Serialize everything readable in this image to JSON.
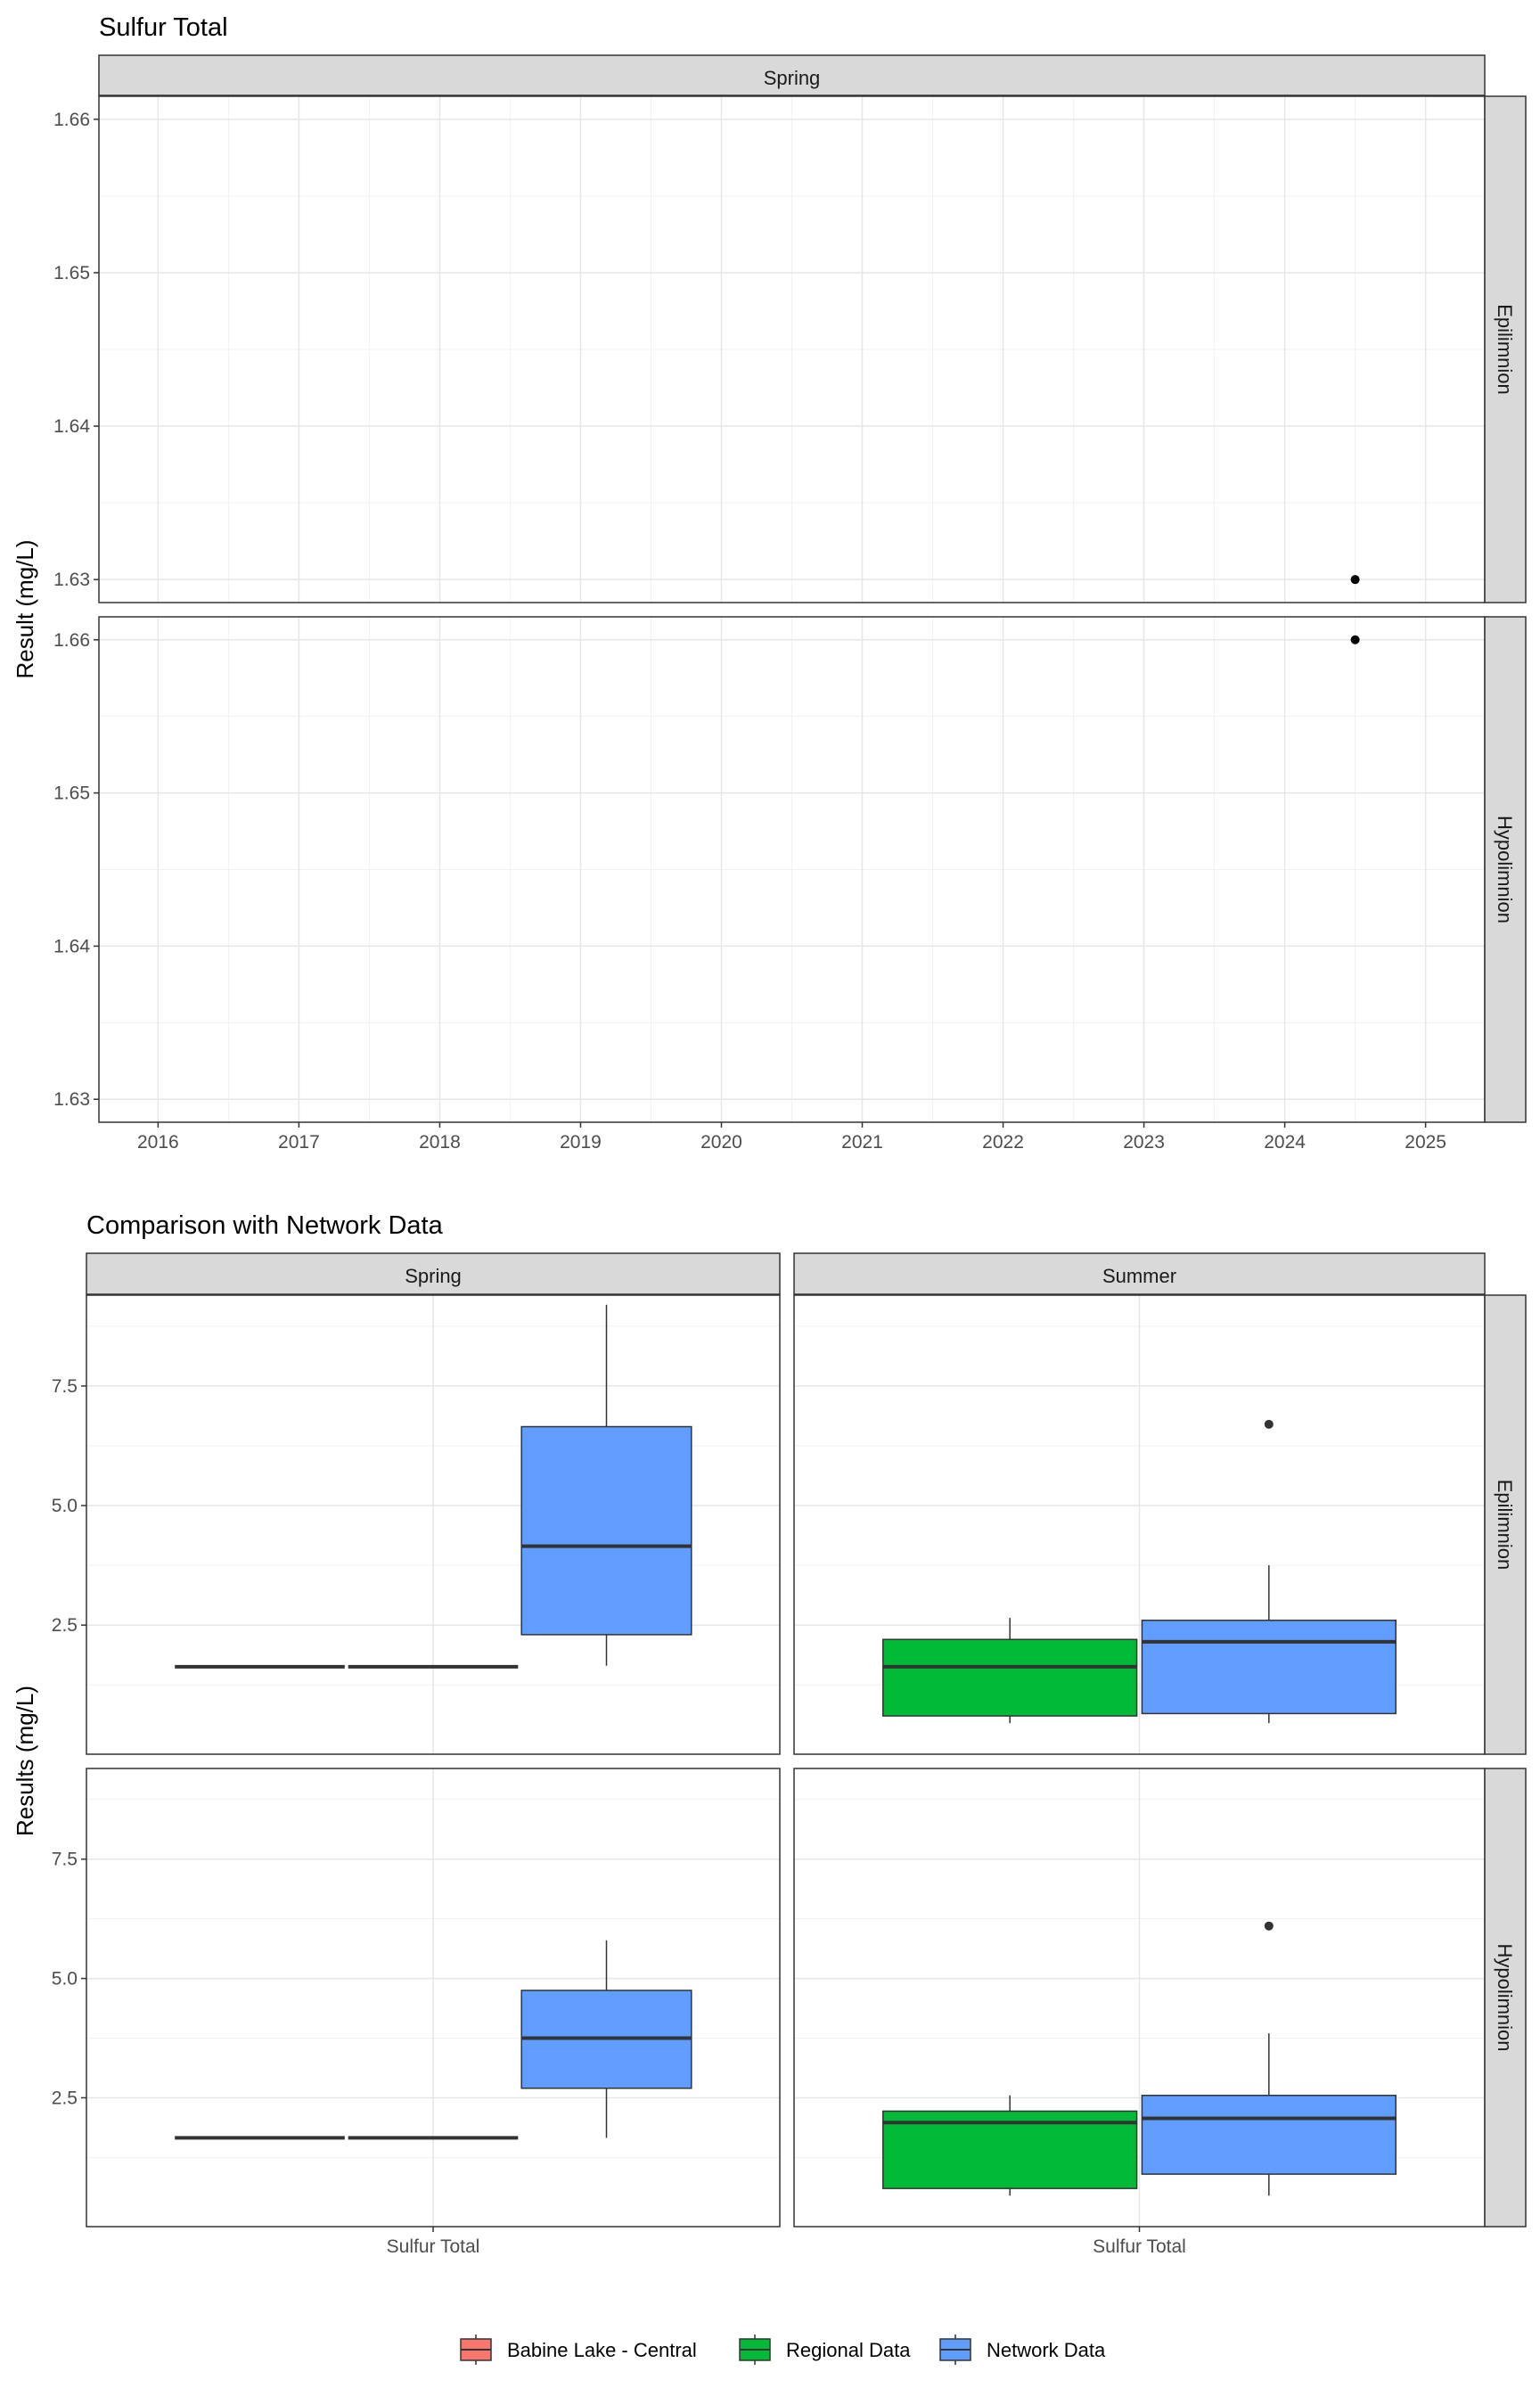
{
  "chart_data": [
    {
      "type": "scatter",
      "title": "Sulfur Total",
      "ylabel": "Result (mg/L)",
      "xlabel": "",
      "x_ticks": [
        "2016",
        "2017",
        "2018",
        "2019",
        "2020",
        "2021",
        "2022",
        "2023",
        "2024",
        "2025"
      ],
      "y_ticks": [
        "1.63",
        "1.64",
        "1.65",
        "1.66"
      ],
      "xlim": [
        2015.58,
        2025.42
      ],
      "ylim": [
        1.6285,
        1.6615
      ],
      "grid": true,
      "column_facets": [
        "Spring"
      ],
      "row_facets": [
        "Epilimnion",
        "Hypolimnion"
      ],
      "panels": [
        {
          "column": "Spring",
          "row": "Epilimnion",
          "points": [
            {
              "x": 2024.5,
              "y": 1.63
            }
          ]
        },
        {
          "column": "Spring",
          "row": "Hypolimnion",
          "points": [
            {
              "x": 2024.5,
              "y": 1.66
            }
          ]
        }
      ]
    },
    {
      "type": "box",
      "title": "Comparison with Network Data",
      "ylabel": "Results (mg/L)",
      "xlabel": "",
      "x_category": "Sulfur Total",
      "y_ticks": [
        "2.5",
        "5.0",
        "7.5"
      ],
      "ylim": [
        -0.2,
        9.4
      ],
      "grid": true,
      "column_facets": [
        "Spring",
        "Summer"
      ],
      "row_facets": [
        "Epilimnion",
        "Hypolimnion"
      ],
      "legend": {
        "position": "bottom",
        "entries": [
          {
            "name": "Babine Lake - Central",
            "color": "#F8766D"
          },
          {
            "name": "Regional Data",
            "color": "#00BA38"
          },
          {
            "name": "Network Data",
            "color": "#619CFF"
          }
        ]
      },
      "panels": [
        {
          "column": "Spring",
          "row": "Epilimnion",
          "boxes": [
            {
              "group": "Babine Lake - Central",
              "min": 1.63,
              "q1": 1.63,
              "median": 1.63,
              "q3": 1.63,
              "max": 1.63,
              "outliers": []
            },
            {
              "group": "Regional Data",
              "min": 1.63,
              "q1": 1.63,
              "median": 1.63,
              "q3": 1.63,
              "max": 1.63,
              "outliers": []
            },
            {
              "group": "Network Data",
              "min": 1.65,
              "q1": 2.3,
              "median": 4.15,
              "q3": 6.65,
              "max": 9.2,
              "outliers": []
            }
          ]
        },
        {
          "column": "Summer",
          "row": "Epilimnion",
          "boxes": [
            {
              "group": "Regional Data",
              "min": 0.45,
              "q1": 0.6,
              "median": 1.63,
              "q3": 2.2,
              "max": 2.65,
              "outliers": []
            },
            {
              "group": "Network Data",
              "min": 0.45,
              "q1": 0.65,
              "median": 2.15,
              "q3": 2.6,
              "max": 3.75,
              "outliers": [
                6.7
              ]
            }
          ]
        },
        {
          "column": "Spring",
          "row": "Hypolimnion",
          "boxes": [
            {
              "group": "Babine Lake - Central",
              "min": 1.66,
              "q1": 1.66,
              "median": 1.66,
              "q3": 1.66,
              "max": 1.66,
              "outliers": []
            },
            {
              "group": "Regional Data",
              "min": 1.66,
              "q1": 1.66,
              "median": 1.66,
              "q3": 1.66,
              "max": 1.66,
              "outliers": []
            },
            {
              "group": "Network Data",
              "min": 1.66,
              "q1": 2.7,
              "median": 3.75,
              "q3": 4.75,
              "max": 5.8,
              "outliers": []
            }
          ]
        },
        {
          "column": "Summer",
          "row": "Hypolimnion",
          "boxes": [
            {
              "group": "Regional Data",
              "min": 0.45,
              "q1": 0.6,
              "median": 1.98,
              "q3": 2.22,
              "max": 2.55,
              "outliers": []
            },
            {
              "group": "Network Data",
              "min": 0.45,
              "q1": 0.9,
              "median": 2.07,
              "q3": 2.55,
              "max": 3.85,
              "outliers": [
                6.1
              ]
            }
          ]
        }
      ]
    }
  ]
}
